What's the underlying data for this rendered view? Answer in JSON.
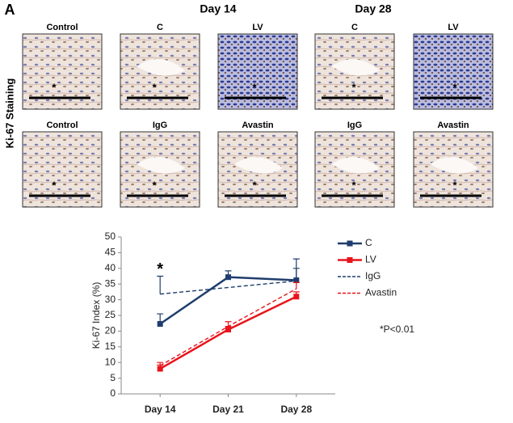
{
  "figure": {
    "panel_letter": "A",
    "day_headers": [
      "Day 14",
      "Day 28"
    ],
    "row_title": "Ki-67 Staining",
    "panel_labels": [
      [
        "Control",
        "C",
        "LV",
        "C",
        "LV"
      ],
      [
        "Control",
        "IgG",
        "Avastin",
        "IgG",
        "Avastin"
      ]
    ],
    "image_asterisk": "*"
  },
  "chart_data": {
    "type": "line",
    "x": [
      14,
      21,
      28
    ],
    "xlim": [
      10,
      32
    ],
    "xticks": [
      {
        "value": 14,
        "label": "Day 14"
      },
      {
        "value": 21,
        "label": "Day 21"
      },
      {
        "value": 28,
        "label": "Day 28"
      }
    ],
    "ylim": [
      0,
      50
    ],
    "yticks": [
      0,
      5,
      10,
      15,
      20,
      25,
      30,
      35,
      40,
      45,
      50
    ],
    "y_label": "Ki-67 Index (%)",
    "series": [
      {
        "name": "C",
        "color": "#1f3d6d",
        "dashed": false,
        "marker": true,
        "values": [
          22.3,
          37.2,
          36.2
        ],
        "errors": [
          3.2,
          2,
          6.8
        ]
      },
      {
        "name": "LV",
        "color": "#e8141b",
        "dashed": false,
        "marker": true,
        "values": [
          8,
          20.5,
          31
        ],
        "errors": [
          1.2,
          1,
          1.5
        ]
      },
      {
        "name": "IgG",
        "color": "#1f3d6d",
        "dashed": true,
        "marker": false,
        "x": [
          14,
          28
        ],
        "values": [
          31.8,
          36
        ],
        "errors": [
          5.7,
          4
        ]
      },
      {
        "name": "Avastin",
        "color": "#e8141b",
        "dashed": true,
        "marker": false,
        "values": [
          9,
          21.5,
          33.5
        ],
        "errors": [
          1,
          1.5,
          2
        ]
      }
    ],
    "annotations": [
      {
        "text": "*",
        "x": 14,
        "y": 40
      }
    ],
    "note": "*P<0.01"
  }
}
